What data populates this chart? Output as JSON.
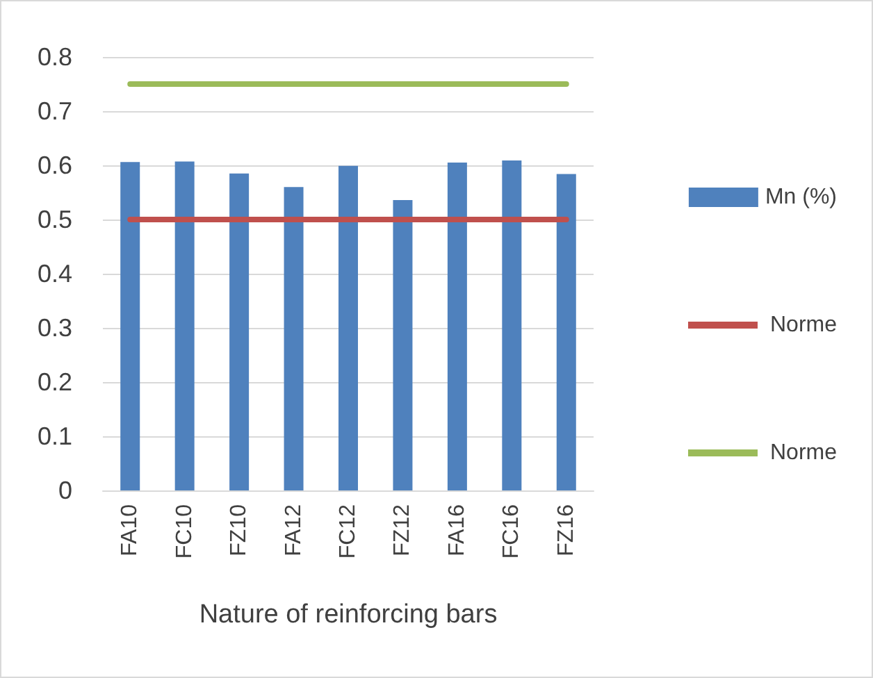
{
  "chart_data": {
    "type": "bar",
    "xlabel": "Nature of reinforcing bars",
    "categories": [
      "FA10",
      "FC10",
      "FZ10",
      "FA12",
      "FC12",
      "FZ12",
      "FA16",
      "FC16",
      "FZ16"
    ],
    "series": [
      {
        "name": "Mn (%)",
        "color": "#4f81bd",
        "values": [
          0.606,
          0.607,
          0.585,
          0.56,
          0.599,
          0.536,
          0.605,
          0.609,
          0.584
        ]
      },
      {
        "name": "Norme",
        "type": "line",
        "color": "#c0504d",
        "values": [
          0.5,
          0.5,
          0.5,
          0.5,
          0.5,
          0.5,
          0.5,
          0.5,
          0.5
        ]
      },
      {
        "name": "Norme",
        "type": "line",
        "color": "#9bbb59",
        "values": [
          0.75,
          0.75,
          0.75,
          0.75,
          0.75,
          0.75,
          0.75,
          0.75,
          0.75
        ]
      }
    ],
    "ylim": [
      0,
      0.8
    ],
    "yticks": [
      0,
      0.1,
      0.2,
      0.3,
      0.4,
      0.5,
      0.6,
      0.7,
      0.8
    ],
    "grid": "y",
    "legend": "right",
    "marker": "none",
    "line_style": "solid"
  }
}
